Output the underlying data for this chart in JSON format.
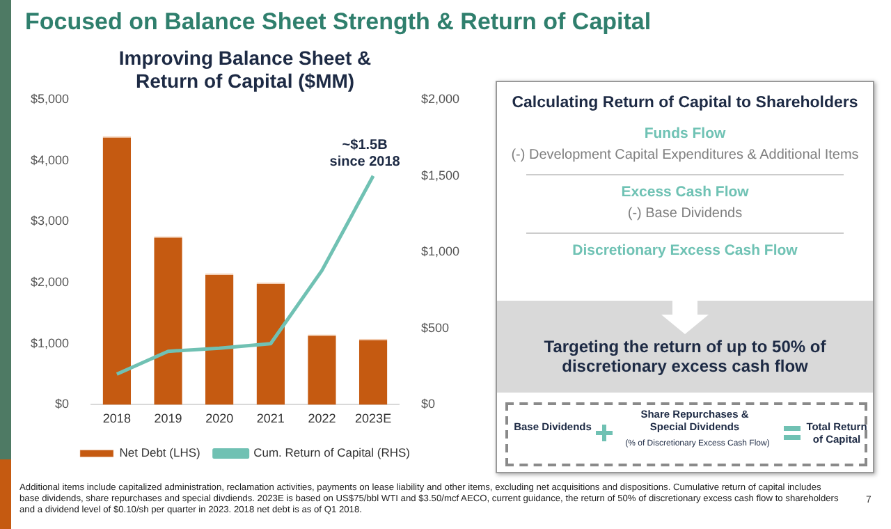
{
  "chart_data": [
    {
      "type": "bar",
      "title": "Improving Balance Sheet & Return of Capital ($MM)",
      "categories": [
        "2018",
        "2019",
        "2020",
        "2021",
        "2022",
        "2023E"
      ],
      "series": [
        {
          "name": "Net Debt (LHS)",
          "color": "#c55a11",
          "values": [
            4400,
            2760,
            2150,
            2000,
            1150,
            1080
          ]
        },
        {
          "name": "Cum. Return of Capital (RHS)",
          "type": "line",
          "axis": "y2",
          "color": "#70c1b3",
          "values": [
            200,
            350,
            370,
            400,
            880,
            1500
          ]
        }
      ],
      "ylim": [
        0,
        5000
      ],
      "yticks": [
        {
          "value": 0,
          "label": "$0"
        },
        {
          "value": 1000,
          "label": "$1,000"
        },
        {
          "value": 2000,
          "label": "$2,000"
        },
        {
          "value": 3000,
          "label": "$3,000"
        },
        {
          "value": 4000,
          "label": "$4,000"
        },
        {
          "value": 5000,
          "label": "$5,000"
        }
      ],
      "y2lim": [
        0,
        2000
      ],
      "y2ticks": [
        {
          "value": 0,
          "label": "$0"
        },
        {
          "value": 500,
          "label": "$500"
        },
        {
          "value": 1000,
          "label": "$1,000"
        },
        {
          "value": 1500,
          "label": "$1,500"
        },
        {
          "value": 2000,
          "label": "$2,000"
        }
      ],
      "grid": false,
      "legend": "bottom",
      "marker": "none",
      "line_style": "solid",
      "annotations": [
        "~$1.5B since 2018",
        "Focused on Balance Sheet Strength & Return of Capital",
        "Additional items include capitalized administration, reclamation activities, payments on lease liability and other items, excluding net acquisitions and dispositions. Cumulative return of capital includes base dividends, share repurchases and special divdiends. 2023E is based on US$75/bbl WTI and $3.50/mcf AECO, current guidance, the return of 50% of discretionary excess cash flow to shareholders and a dividend level of $0.10/sh per quarter in 2023. 2018 net debt is as of Q1 2018.",
        "7"
      ]
    },
    {
      "type": "other",
      "title": "Calculating Return of Capital to Shareholders",
      "annotations": [
        "Funds Flow",
        "(-) Development Capital Expenditures & Additional Items",
        "Excess Cash Flow",
        "(-) Base Dividends",
        "Discretionary Excess Cash Flow",
        "Targeting the return of up to 50% of discretionary excess cash flow",
        "Base Dividends",
        "Share Repurchases & Special Dividends",
        "(% of Discretionary Excess Cash Flow)",
        "Total Return of Capital"
      ]
    }
  ]
}
